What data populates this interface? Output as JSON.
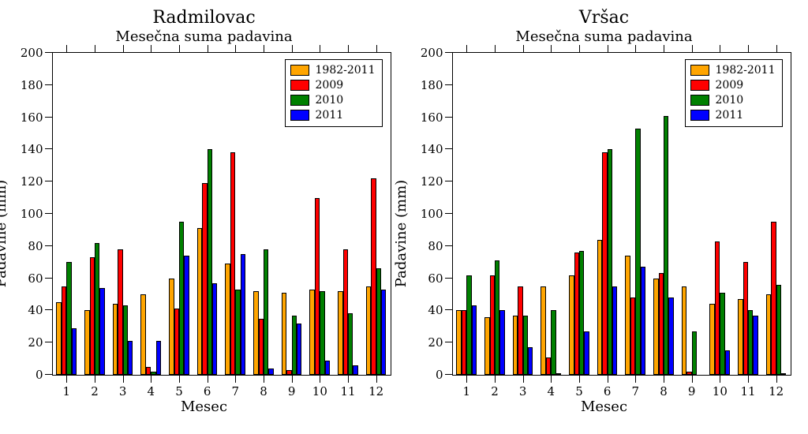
{
  "chart": {
    "type": "bar",
    "ylim": [
      0,
      200
    ],
    "ytick_step": 20,
    "xticks": [
      1,
      2,
      3,
      4,
      5,
      6,
      7,
      8,
      9,
      10,
      11,
      12
    ],
    "xlabel": "Mesec",
    "ylabel": "Padavine (mm)",
    "series_colors": {
      "s0": "#ffa500",
      "s1": "#ff0000",
      "s2": "#008000",
      "s3": "#0000ff"
    },
    "border_color": "#000000",
    "background": "#ffffff",
    "bar_group_width": 0.72,
    "legend_labels": {
      "s0": "1982-2011",
      "s1": "2009",
      "s2": "2010",
      "s3": "2011"
    },
    "title_main_fontsize": 22,
    "title_sub_fontsize": 18,
    "axis_label_fontsize": 18,
    "tick_label_fontsize": 15,
    "legend_fontsize": 14
  },
  "panels": [
    {
      "title_main": "Radmilovac",
      "title_sub": "Mesečna suma padavina",
      "data": {
        "s0": [
          45,
          40,
          44,
          50,
          60,
          91,
          69,
          52,
          51,
          53,
          52,
          55
        ],
        "s1": [
          55,
          73,
          78,
          5,
          41,
          119,
          138,
          35,
          3,
          110,
          78,
          122
        ],
        "s2": [
          70,
          82,
          43,
          2,
          95,
          140,
          53,
          78,
          37,
          52,
          38,
          66
        ],
        "s3": [
          29,
          54,
          21,
          21,
          74,
          57,
          75,
          4,
          32,
          9,
          6,
          53
        ]
      }
    },
    {
      "title_main": "Vršac",
      "title_sub": "Mesečna suma padavina",
      "data": {
        "s0": [
          40,
          36,
          37,
          55,
          62,
          84,
          74,
          60,
          55,
          44,
          47,
          50
        ],
        "s1": [
          40,
          62,
          55,
          11,
          76,
          138,
          48,
          63,
          2,
          83,
          70,
          95
        ],
        "s2": [
          62,
          71,
          37,
          40,
          77,
          140,
          153,
          161,
          27,
          51,
          40,
          56
        ],
        "s3": [
          43,
          40,
          17,
          1,
          27,
          55,
          67,
          48,
          0,
          15,
          37,
          1
        ]
      }
    }
  ]
}
